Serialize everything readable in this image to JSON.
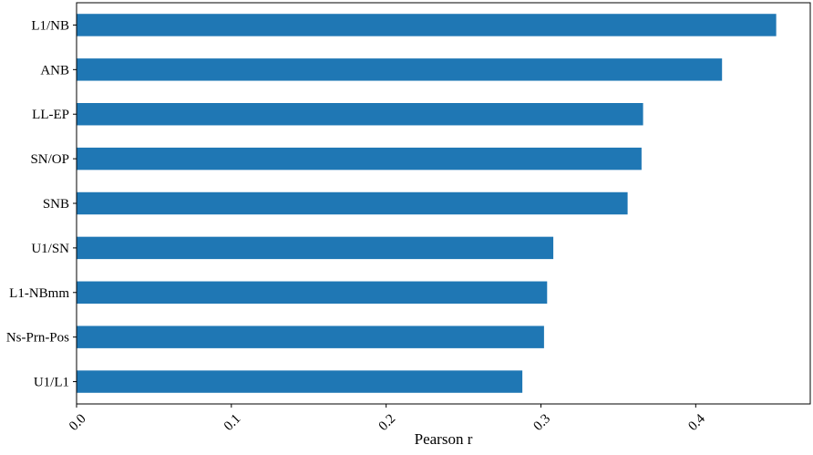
{
  "chart_data": {
    "type": "bar",
    "orientation": "horizontal",
    "categories": [
      "L1/NB",
      "ANB",
      "LL-EP",
      "SN/OP",
      "SNB",
      "U1/SN",
      "L1-NBmm",
      "Ns-Prn-Pos",
      "U1/L1"
    ],
    "values": [
      0.452,
      0.417,
      0.366,
      0.365,
      0.356,
      0.308,
      0.304,
      0.302,
      0.288
    ],
    "xlabel": "Pearson r",
    "ylabel": "",
    "title": "",
    "xlim": [
      0.0,
      0.474
    ],
    "xticks": [
      "0.0",
      "0.1",
      "0.2",
      "0.3",
      "0.4"
    ],
    "xtick_values": [
      0.0,
      0.1,
      0.2,
      0.3,
      0.4
    ],
    "xtick_rotation": "45 degrees",
    "grid": false,
    "legend": "none",
    "bar_color": "#1f77b4"
  }
}
